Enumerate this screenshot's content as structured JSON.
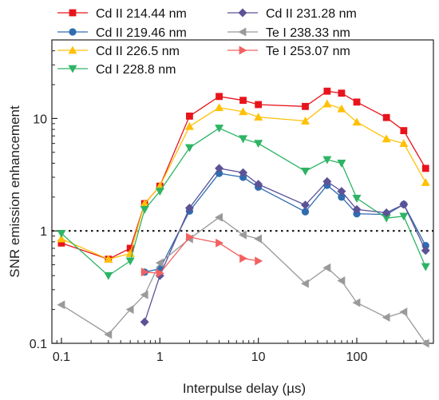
{
  "chart_data": {
    "type": "line",
    "title": "",
    "xlabel": "Interpulse delay (µs)",
    "ylabel": "SNR emission enhancement",
    "x_scale": "log",
    "y_scale": "log",
    "xlim": [
      0.08,
      600
    ],
    "ylim": [
      0.1,
      50
    ],
    "x_ticks": [
      0.1,
      1,
      10,
      100
    ],
    "x_tick_labels": [
      "0.1",
      "1",
      "10",
      "100"
    ],
    "y_ticks": [
      0.1,
      1,
      10
    ],
    "y_tick_labels": [
      "0.1",
      "1",
      "10"
    ],
    "reference_line": {
      "y": 1,
      "style": "dotted"
    },
    "grid": false,
    "legend_position": "top",
    "series": [
      {
        "name": "Cd II 214.44 nm",
        "color": "#e8141c",
        "marker": "square",
        "x": [
          0.1,
          0.3,
          0.5,
          0.7,
          1,
          2,
          4,
          7,
          10,
          30,
          50,
          70,
          100,
          200,
          300,
          500
        ],
        "y": [
          0.78,
          0.56,
          0.7,
          1.75,
          2.5,
          10.5,
          15.7,
          14.5,
          13.3,
          12.8,
          17.5,
          16.8,
          14.0,
          10.2,
          7.8,
          3.6
        ]
      },
      {
        "name": "Cd II 219.46 nm",
        "color": "#2f6db0",
        "marker": "circle",
        "x": [
          0.7,
          1,
          2,
          4,
          7,
          10,
          30,
          50,
          70,
          100,
          200,
          300,
          500
        ],
        "y": [
          0.43,
          0.46,
          1.5,
          3.25,
          3.0,
          2.45,
          1.48,
          2.55,
          2.0,
          1.42,
          1.4,
          1.72,
          0.74
        ]
      },
      {
        "name": "Cd II 226.5 nm",
        "color": "#ffc107",
        "marker": "triangle-up",
        "x": [
          0.1,
          0.3,
          0.5,
          0.7,
          1,
          2,
          4,
          7,
          10,
          30,
          50,
          70,
          100,
          200,
          300,
          500
        ],
        "y": [
          0.85,
          0.56,
          0.63,
          1.75,
          2.5,
          8.5,
          12.5,
          11.5,
          10.3,
          9.5,
          13.5,
          12.2,
          9.3,
          6.6,
          6.0,
          2.7
        ]
      },
      {
        "name": "Cd I 228.8 nm",
        "color": "#2db464",
        "marker": "triangle-down",
        "x": [
          0.1,
          0.3,
          0.5,
          0.7,
          1,
          2,
          4,
          7,
          10,
          30,
          50,
          70,
          100,
          200,
          300,
          500
        ],
        "y": [
          0.95,
          0.4,
          0.54,
          1.55,
          2.25,
          5.5,
          8.2,
          6.6,
          6.0,
          3.4,
          4.3,
          4.0,
          1.95,
          1.3,
          1.35,
          0.48
        ]
      },
      {
        "name": "Cd II 231.28 nm",
        "color": "#5c5296",
        "marker": "diamond",
        "x": [
          0.7,
          1,
          2,
          4,
          7,
          10,
          30,
          50,
          70,
          100,
          200,
          300,
          500
        ],
        "y": [
          0.155,
          0.4,
          1.6,
          3.6,
          3.3,
          2.6,
          1.7,
          2.75,
          2.25,
          1.55,
          1.45,
          1.72,
          0.67
        ]
      },
      {
        "name": "Te I 238.33 nm",
        "color": "#9a9a9a",
        "marker": "triangle-left",
        "x": [
          0.1,
          0.3,
          0.5,
          0.7,
          1,
          2,
          4,
          7,
          10,
          30,
          50,
          70,
          100,
          200,
          300,
          500
        ],
        "y": [
          0.22,
          0.12,
          0.2,
          0.27,
          0.52,
          0.85,
          1.32,
          0.92,
          0.85,
          0.34,
          0.47,
          0.36,
          0.23,
          0.17,
          0.19,
          0.1
        ]
      },
      {
        "name": "Te I 253.07 nm",
        "color": "#f26161",
        "marker": "triangle-right",
        "x": [
          0.7,
          1,
          2,
          4,
          7,
          10
        ],
        "y": [
          0.43,
          0.42,
          0.88,
          0.78,
          0.57,
          0.54
        ]
      }
    ]
  }
}
